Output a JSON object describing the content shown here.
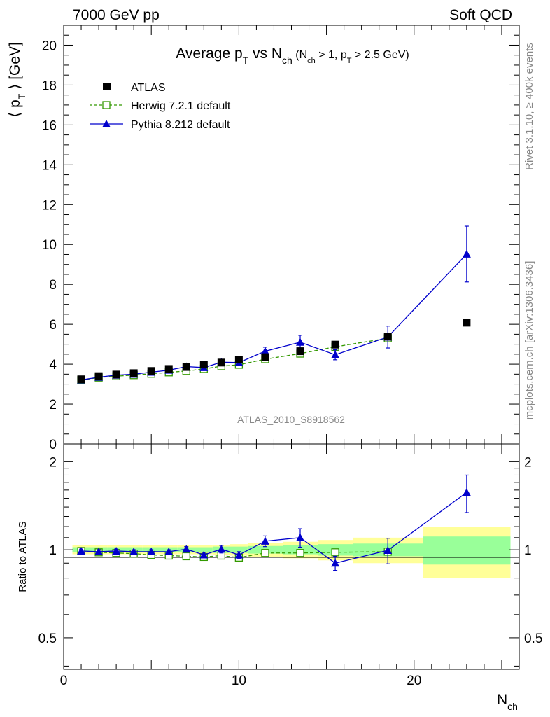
{
  "header": {
    "left": "7000 GeV pp",
    "right": "Soft QCD"
  },
  "side_notes": {
    "rivet": "Rivet 3.1.10, ≥ 400k events",
    "mcplots": "mcplots.cern.ch [arXiv:1306.3436]"
  },
  "watermark": "ATLAS_2010_S8918562",
  "title": {
    "main": "Average p",
    "sub1": "T",
    "mid": " vs N",
    "sub2": "ch",
    "cond_a": " (N",
    "cond_sub_a": "ch",
    "cond_b": " > 1, p",
    "cond_sub_b": "T",
    "cond_c": " > 2.5 GeV)"
  },
  "axes": {
    "ylabel_main_a": "⟨ p",
    "ylabel_main_sub": "T",
    "ylabel_main_b": " ⟩ [GeV]",
    "ylabel_ratio": "Ratio to ATLAS",
    "xlabel": "N",
    "xlabel_sub": "ch"
  },
  "legend": {
    "atlas": "ATLAS",
    "herwig": "Herwig 7.2.1 default",
    "pythia": "Pythia 8.212 default"
  },
  "colors": {
    "atlas": "#000000",
    "herwig": "#339900",
    "pythia": "#0000cc",
    "band_inner": "#99ff99",
    "band_outer": "#ffff99"
  },
  "chart_data": [
    {
      "type": "scatter",
      "panel": "main",
      "xlim": [
        0,
        26
      ],
      "ylim": [
        0,
        21
      ],
      "y_ticks": [
        0,
        2,
        4,
        6,
        8,
        10,
        12,
        14,
        16,
        18,
        20
      ],
      "y_tick_labels": [
        "0",
        "2",
        "4",
        "6",
        "8",
        "10",
        "12",
        "14",
        "16",
        "18",
        "20"
      ],
      "x_ticks": [
        0,
        10,
        20
      ],
      "x_tick_labels": [
        "0",
        "10",
        "20"
      ],
      "series": [
        {
          "name": "ATLAS",
          "style": "points",
          "x": [
            1,
            2,
            3,
            4,
            5,
            6,
            7,
            8,
            9,
            10,
            11.5,
            13.5,
            15.5,
            18.5,
            23
          ],
          "y": [
            3.24,
            3.4,
            3.48,
            3.55,
            3.66,
            3.76,
            3.86,
            3.98,
            4.08,
            4.23,
            4.35,
            4.65,
            4.98,
            5.38,
            6.08
          ]
        },
        {
          "name": "Herwig 7.2.1 default",
          "style": "dashed-open-squares",
          "x": [
            1,
            2,
            3,
            4,
            5,
            6,
            7,
            8,
            9,
            10,
            11.5,
            13.5,
            15.5,
            18.5
          ],
          "y": [
            3.2,
            3.33,
            3.4,
            3.45,
            3.52,
            3.59,
            3.66,
            3.76,
            3.9,
            3.97,
            4.25,
            4.53,
            4.87,
            5.3
          ],
          "err": [
            0.05,
            0.05,
            0.05,
            0.05,
            0.05,
            0.05,
            0.05,
            0.05,
            0.05,
            0.05,
            0.08,
            0.1,
            0.12,
            0.2
          ]
        },
        {
          "name": "Pythia 8.212 default",
          "style": "solid-triangles",
          "x": [
            1,
            2,
            3,
            4,
            5,
            6,
            7,
            8,
            9,
            10,
            11.5,
            13.5,
            15.5,
            18.5,
            23
          ],
          "y": [
            3.21,
            3.35,
            3.45,
            3.5,
            3.6,
            3.7,
            3.88,
            3.83,
            4.1,
            4.08,
            4.65,
            5.1,
            4.47,
            5.36,
            9.52
          ],
          "err": [
            0.05,
            0.05,
            0.05,
            0.05,
            0.05,
            0.06,
            0.08,
            0.08,
            0.12,
            0.1,
            0.2,
            0.35,
            0.25,
            0.55,
            1.4
          ]
        }
      ]
    },
    {
      "type": "scatter",
      "panel": "ratio",
      "ylabel": "Ratio to ATLAS",
      "ylim": [
        0.39,
        2.3
      ],
      "log_y": true,
      "y_ticks": [
        0.5,
        1,
        2
      ],
      "y_tick_labels": [
        "0.5",
        "1",
        "2"
      ],
      "x_ticks": [
        0,
        10,
        20
      ],
      "x_tick_labels": [
        "0",
        "10",
        "20"
      ],
      "xlim": [
        0,
        26
      ],
      "atlas_bands": {
        "edges": [
          0.5,
          1.5,
          2.5,
          3.5,
          4.5,
          5.5,
          6.5,
          7.5,
          8.5,
          9.5,
          10.5,
          12.5,
          14.5,
          16.5,
          20.5,
          25.5
        ],
        "inner": [
          0.02,
          0.02,
          0.02,
          0.02,
          0.02,
          0.02,
          0.02,
          0.02,
          0.025,
          0.025,
          0.03,
          0.035,
          0.045,
          0.05,
          0.11
        ],
        "outer": [
          0.035,
          0.035,
          0.035,
          0.035,
          0.035,
          0.035,
          0.035,
          0.035,
          0.04,
          0.045,
          0.055,
          0.065,
          0.08,
          0.1,
          0.2
        ]
      },
      "series": [
        {
          "name": "Herwig 7.2.1 default",
          "x": [
            1,
            2,
            3,
            4,
            5,
            6,
            7,
            8,
            9,
            10,
            11.5,
            13.5,
            15.5,
            18.5
          ],
          "y": [
            0.99,
            0.98,
            0.975,
            0.97,
            0.96,
            0.955,
            0.95,
            0.945,
            0.955,
            0.94,
            0.975,
            0.975,
            0.98,
            0.985
          ],
          "err": [
            0.015,
            0.015,
            0.015,
            0.015,
            0.015,
            0.015,
            0.015,
            0.015,
            0.015,
            0.015,
            0.02,
            0.02,
            0.025,
            0.04
          ]
        },
        {
          "name": "Pythia 8.212 default",
          "x": [
            1,
            2,
            3,
            4,
            5,
            6,
            7,
            8,
            9,
            10,
            11.5,
            13.5,
            15.5,
            18.5,
            23
          ],
          "y": [
            0.99,
            0.985,
            0.99,
            0.985,
            0.985,
            0.985,
            1.005,
            0.96,
            1.005,
            0.96,
            1.07,
            1.1,
            0.9,
            0.995,
            1.57
          ],
          "err": [
            0.015,
            0.015,
            0.015,
            0.015,
            0.015,
            0.015,
            0.02,
            0.02,
            0.03,
            0.025,
            0.045,
            0.08,
            0.05,
            0.1,
            0.23
          ]
        }
      ]
    }
  ]
}
